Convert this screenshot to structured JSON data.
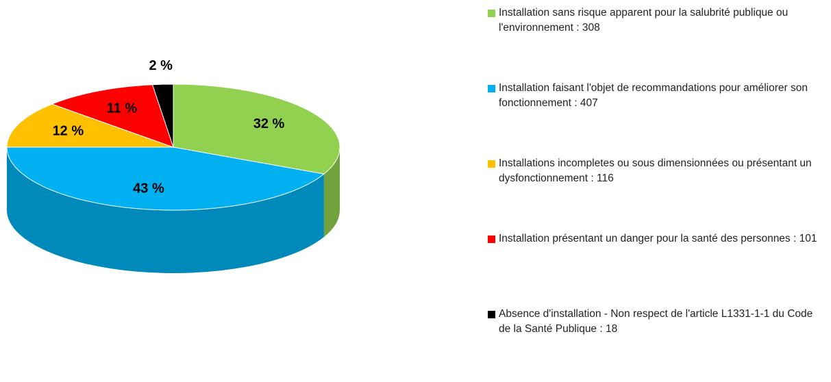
{
  "chart_data": {
    "type": "pie",
    "series": [
      {
        "name": "Installation sans risque apparent pour la salubrité publique ou l'environnement : 308",
        "color": "#92d050",
        "values": [
          32
        ],
        "value_labels": [
          "32  %"
        ]
      },
      {
        "name": "Installation faisant l'objet de recommandations pour améliorer son fonctionnement : 407",
        "color": "#00b0f0",
        "values": [
          43
        ],
        "value_labels": [
          "43 %"
        ]
      },
      {
        "name": "Installations incompletes ou sous dimensionnées ou présentant un dysfonctionnement : 116",
        "color": "#ffc000",
        "values": [
          12
        ],
        "value_labels": [
          "12  %"
        ]
      },
      {
        "name": "Installation présentant un danger pour la santé des personnes : 101",
        "color": "#ff0000",
        "values": [
          11
        ],
        "value_labels": [
          "11 %"
        ]
      },
      {
        "name": "Absence d'installation - Non respect de l'article L1331-1-1 du Code de la Santé Publique : 18",
        "color": "#000000",
        "values": [
          2
        ],
        "value_labels": [
          "2 %"
        ]
      }
    ],
    "legend": "right"
  }
}
